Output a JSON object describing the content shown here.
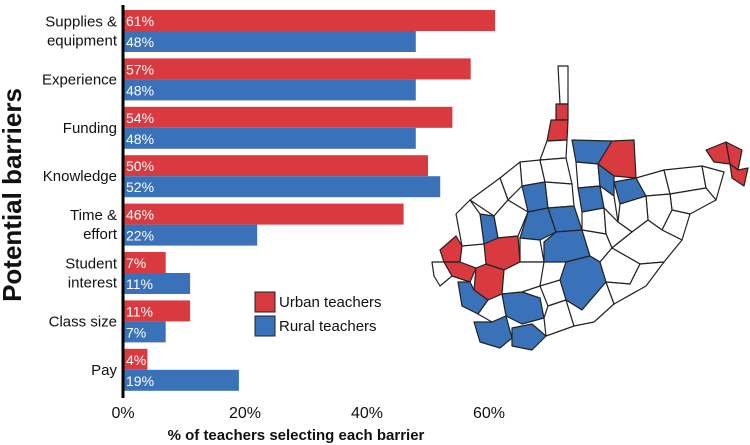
{
  "chart_data": {
    "type": "bar",
    "orientation": "horizontal",
    "title": "",
    "xlabel": "% of teachers selecting each barrier",
    "ylabel": "Potential barriers",
    "xlim": [
      0,
      70
    ],
    "xticks": [
      "0%",
      "20%",
      "40%",
      "60%"
    ],
    "xtick_values": [
      0,
      20,
      40,
      60
    ],
    "grid": false,
    "legend_position": "center-right",
    "categories": [
      [
        "Supplies &",
        "equipment"
      ],
      [
        "Experience"
      ],
      [
        "Funding"
      ],
      [
        "Knowledge"
      ],
      [
        "Time &",
        "effort"
      ],
      [
        "Student",
        "interest"
      ],
      [
        "Class size"
      ],
      [
        "Pay"
      ]
    ],
    "series": [
      {
        "name": "Urban teachers",
        "color": "#d93a3f",
        "values": [
          61,
          57,
          54,
          50,
          46,
          7,
          11,
          4
        ],
        "labels": [
          "61%",
          "57%",
          "54%",
          "50%",
          "46%",
          "7%",
          "11%",
          "4%"
        ]
      },
      {
        "name": "Rural teachers",
        "color": "#3a72b9",
        "values": [
          48,
          48,
          48,
          52,
          22,
          11,
          7,
          19
        ],
        "labels": [
          "48%",
          "48%",
          "48%",
          "52%",
          "22%",
          "11%",
          "7%",
          "19%"
        ]
      }
    ],
    "map": {
      "red_color": "#d93a3f",
      "blue_color": "#3a72b9",
      "none_color": "#ffffff"
    }
  }
}
